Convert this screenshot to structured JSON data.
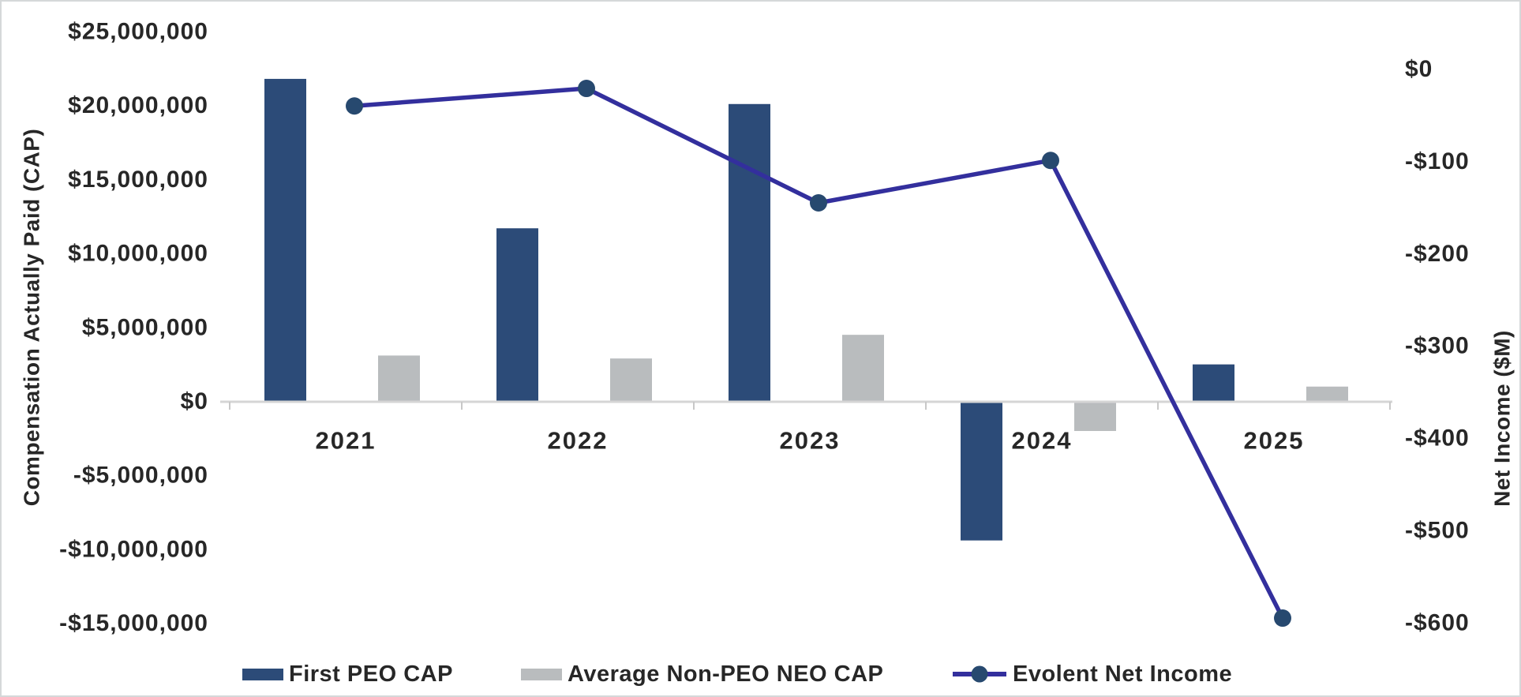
{
  "figure": {
    "background": "#FFFFFF",
    "border_color": "#D5D8D9",
    "text_color": "#272727",
    "axis_line_color": "#D5D5D5",
    "tick_mark_color": "#C8C8C8"
  },
  "chart_data": {
    "type": "combo",
    "subtype": "bar+line, dual axis",
    "categories": [
      "2021",
      "2022",
      "2023",
      "2024",
      "2025"
    ],
    "series": [
      {
        "name": "First PEO CAP",
        "type": "bar",
        "axis": "left",
        "color": "#2C4B78",
        "values": [
          21800000,
          11700000,
          20100000,
          -9400000,
          2500000
        ]
      },
      {
        "name": "Average Non-PEO NEO CAP",
        "type": "bar",
        "axis": "left",
        "color": "#B9BCBE",
        "values": [
          3100000,
          2900000,
          4500000,
          -2000000,
          1000000
        ]
      },
      {
        "name": "Evolent Net Income",
        "type": "line",
        "axis": "right",
        "color": "#332F9D",
        "marker_color": "#27496F",
        "values": [
          -40,
          -21,
          -145,
          -99,
          -595
        ]
      }
    ],
    "left_axis": {
      "title": "Compensation Actually Paid (CAP)",
      "range": [
        -15000000,
        25000000
      ],
      "ticks": [
        {
          "label": "$25,000,000",
          "value": 25000000
        },
        {
          "label": "$20,000,000",
          "value": 20000000
        },
        {
          "label": "$15,000,000",
          "value": 15000000
        },
        {
          "label": "$10,000,000",
          "value": 10000000
        },
        {
          "label": "$5,000,000",
          "value": 5000000
        },
        {
          "label": "$0",
          "value": 0
        },
        {
          "label": "-$5,000,000",
          "value": -5000000
        },
        {
          "label": "-$10,000,000",
          "value": -10000000
        },
        {
          "label": "-$15,000,000",
          "value": -15000000
        }
      ]
    },
    "right_axis": {
      "title": "Net Income ($M)",
      "range": [
        -600,
        0
      ],
      "ticks": [
        {
          "label": "$0",
          "value": 0
        },
        {
          "label": "-$100",
          "value": -100
        },
        {
          "label": "-$200",
          "value": -200
        },
        {
          "label": "-$300",
          "value": -300
        },
        {
          "label": "-$400",
          "value": -400
        },
        {
          "label": "-$500",
          "value": -500
        },
        {
          "label": "-$600",
          "value": -600
        }
      ]
    },
    "x_axis": {
      "labels": [
        "2021",
        "2022",
        "2023",
        "2024",
        "2025"
      ]
    },
    "grid": false,
    "legend_position": "bottom",
    "legend": [
      {
        "label": "First PEO CAP",
        "swatch": "bar",
        "color": "#2C4B78"
      },
      {
        "label": "Average Non-PEO NEO CAP",
        "swatch": "bar",
        "color": "#B9BCBE"
      },
      {
        "label": "Evolent Net Income",
        "swatch": "line",
        "color": "#332F9D",
        "marker_color": "#27496F"
      }
    ]
  }
}
